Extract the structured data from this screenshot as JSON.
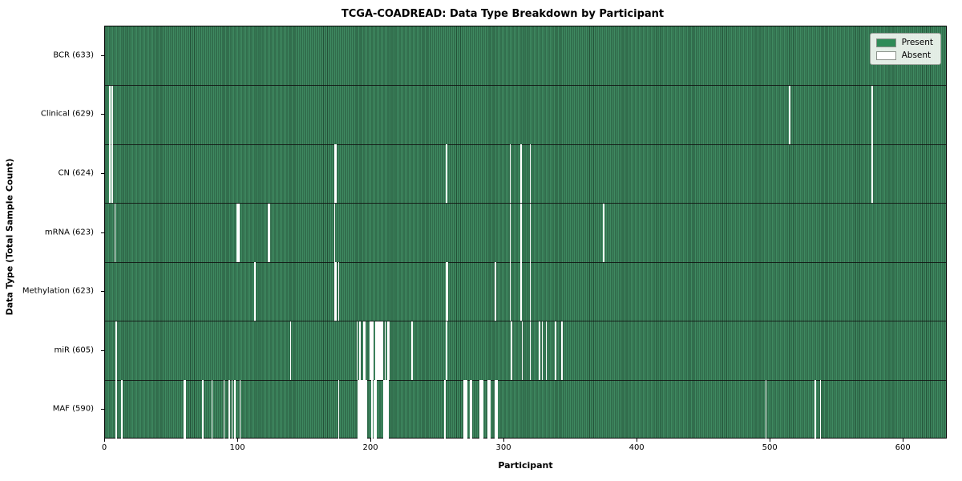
{
  "title": "TCGA-COADREAD: Data Type Breakdown by Participant",
  "x_axis": {
    "label": "Participant",
    "ticks": [
      0,
      100,
      200,
      300,
      400,
      500,
      600
    ]
  },
  "y_axis": {
    "label": "Data Type (Total Sample Count)"
  },
  "legend": {
    "present_label": "Present",
    "absent_label": "Absent",
    "present_color": "#2e8b57",
    "absent_color": "#ffffff",
    "swatch_border": "#8a918a"
  },
  "chart_data": {
    "type": "heatmap",
    "n_participants": 633,
    "x_range": [
      0,
      633
    ],
    "present_color": "#2e8b57",
    "absent_color": "#ffffff",
    "rows": [
      {
        "label": "BCR (633)",
        "name": "BCR",
        "count": 633,
        "absent": []
      },
      {
        "label": "Clinical (629)",
        "name": "Clinical",
        "count": 629,
        "absent": [
          3,
          5,
          514,
          576
        ]
      },
      {
        "label": "CN (624)",
        "name": "CN",
        "count": 624,
        "absent": [
          3,
          5,
          172,
          173,
          256,
          304,
          312,
          319,
          576
        ]
      },
      {
        "label": "mRNA (623)",
        "name": "mRNA",
        "count": 623,
        "absent": [
          7,
          99,
          100,
          122,
          123,
          172,
          304,
          312,
          319,
          374
        ]
      },
      {
        "label": "Methylation (623)",
        "name": "Methylation",
        "count": 623,
        "absent": [
          112,
          172,
          173,
          175,
          256,
          257,
          293,
          304,
          312,
          319
        ]
      },
      {
        "label": "miR (605)",
        "name": "miR",
        "count": 605,
        "absent": [
          8,
          139,
          189,
          191,
          194,
          195,
          199,
          200,
          201,
          203,
          204,
          205,
          206,
          207,
          208,
          210,
          212,
          213,
          230,
          256,
          305,
          313,
          319,
          326,
          328,
          331,
          338,
          343
        ]
      },
      {
        "label": "MAF (590)",
        "name": "MAF",
        "count": 590,
        "absent": [
          8,
          12,
          59,
          60,
          73,
          80,
          89,
          93,
          95,
          97,
          101,
          175,
          190,
          191,
          192,
          193,
          194,
          195,
          196,
          200,
          202,
          203,
          209,
          210,
          211,
          212,
          255,
          269,
          270,
          271,
          274,
          275,
          281,
          282,
          283,
          287,
          288,
          289,
          293,
          294,
          496,
          533,
          537
        ]
      }
    ]
  }
}
